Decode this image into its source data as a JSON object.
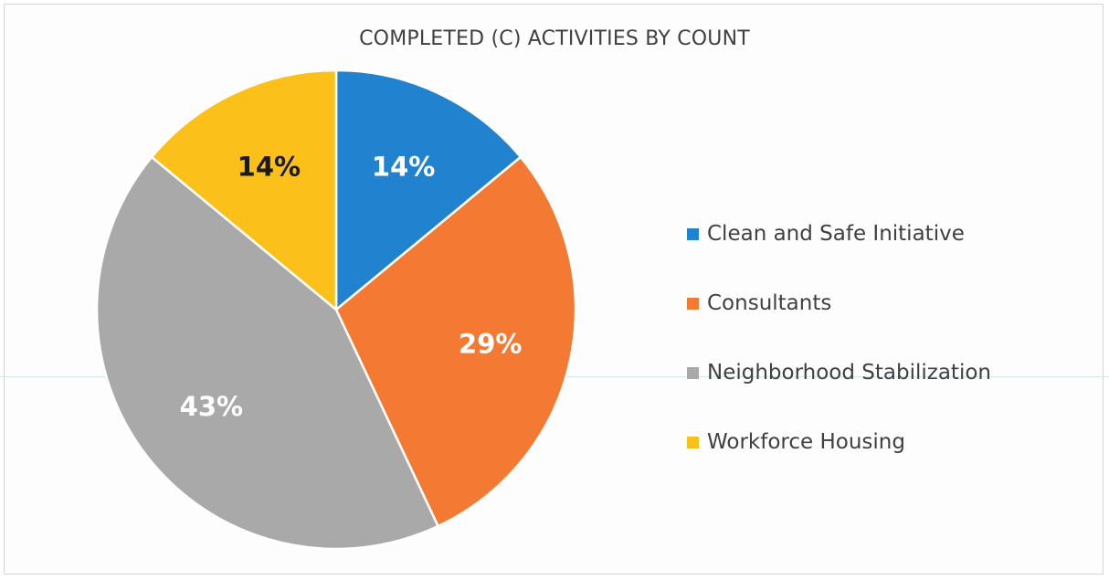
{
  "chart_data": {
    "type": "pie",
    "title": "COMPLETED (C) ACTIVITIES  BY COUNT",
    "categories": [
      "Clean and Safe Initiative",
      "Consultants",
      "Neighborhood Stabilization",
      "Workforce Housing"
    ],
    "values": [
      14,
      29,
      43,
      14
    ],
    "value_labels": [
      "14%",
      "29%",
      "43%",
      "14%"
    ],
    "colors": [
      "#2183d0",
      "#f47a34",
      "#a9a9a9",
      "#fbc11a"
    ],
    "label_colors": [
      "#ffffff",
      "#ffffff",
      "#ffffff",
      "#1a1a1a"
    ],
    "legend_position": "right"
  }
}
